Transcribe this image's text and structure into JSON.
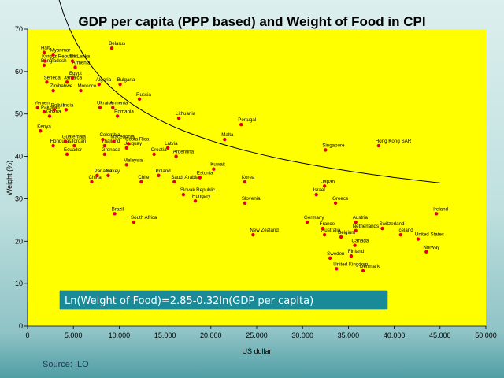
{
  "footer": {
    "source": "Source: ILO"
  },
  "chart_data": {
    "type": "scatter",
    "title": "GDP per capita (PPP based) and Weight of Food in CPI",
    "xlabel": "US dollar",
    "ylabel": "Weight (%)",
    "xlim": [
      0,
      50000
    ],
    "ylim": [
      0,
      70
    ],
    "x_ticks": [
      0,
      5000,
      10000,
      15000,
      20000,
      25000,
      30000,
      35000,
      40000,
      45000,
      50000
    ],
    "x_tick_labels": [
      "0",
      "5.000",
      "10.000",
      "15.000",
      "20.000",
      "25.000",
      "30.000",
      "35.000",
      "40.000",
      "45.000",
      "50.000"
    ],
    "y_ticks": [
      0,
      10,
      20,
      30,
      40,
      50,
      60,
      70
    ],
    "y_tick_labels": [
      "0",
      "10",
      "20",
      "30",
      "40",
      "50",
      "60",
      "70"
    ],
    "grid": false,
    "colors": {
      "plot_background": "#ffff00",
      "points": "#e0001b",
      "trendline": "#000000",
      "equation_box": "#1a8a99"
    },
    "trendline": {
      "label": "Ln(Weight of Food)=2.85-0.32ln(GDP per capita)",
      "x_from": 1000,
      "x_to": 45000,
      "intercept": 2.85,
      "slope": -0.32,
      "scale_factor": 60.16
    },
    "points": [
      {
        "name": "Belarus",
        "x": 9200,
        "y": 65.5
      },
      {
        "name": "Haiti",
        "x": 1800,
        "y": 64.5
      },
      {
        "name": "Myanmar",
        "x": 2800,
        "y": 64
      },
      {
        "name": "Kyrgyz Republic",
        "x": 1900,
        "y": 62.5
      },
      {
        "name": "Sri Lanka",
        "x": 4900,
        "y": 62.5
      },
      {
        "name": "Bangladesh",
        "x": 1800,
        "y": 61.5
      },
      {
        "name": "Armenia",
        "x": 5200,
        "y": 61
      },
      {
        "name": "Egypt",
        "x": 4900,
        "y": 58.5
      },
      {
        "name": "Senegal",
        "x": 2100,
        "y": 57.5
      },
      {
        "name": "Jamaica",
        "x": 4300,
        "y": 57.5
      },
      {
        "name": "Algeria",
        "x": 7800,
        "y": 57
      },
      {
        "name": "Bulgaria",
        "x": 10100,
        "y": 57
      },
      {
        "name": "Zimbabwe",
        "x": 2800,
        "y": 55.5
      },
      {
        "name": "Morocco",
        "x": 5800,
        "y": 55.5
      },
      {
        "name": "Russia",
        "x": 12200,
        "y": 53.5
      },
      {
        "name": "Yemen",
        "x": 1100,
        "y": 51.5
      },
      {
        "name": "Ukraine",
        "x": 7900,
        "y": 51.5
      },
      {
        "name": "Armenia",
        "x": 9300,
        "y": 51.5
      },
      {
        "name": "Bolivia",
        "x": 2900,
        "y": 51
      },
      {
        "name": "India",
        "x": 4200,
        "y": 51
      },
      {
        "name": "Pakistan",
        "x": 1800,
        "y": 50.5
      },
      {
        "name": "Ghana",
        "x": 2400,
        "y": 49.5
      },
      {
        "name": "Romania",
        "x": 9800,
        "y": 49.5
      },
      {
        "name": "Lithuania",
        "x": 16500,
        "y": 49
      },
      {
        "name": "Portugal",
        "x": 23300,
        "y": 47.5
      },
      {
        "name": "Kenya",
        "x": 1400,
        "y": 46
      },
      {
        "name": "Colombia",
        "x": 8200,
        "y": 44
      },
      {
        "name": "Malta",
        "x": 21500,
        "y": 44
      },
      {
        "name": "Guatemala",
        "x": 4100,
        "y": 43.5
      },
      {
        "name": "Macedonia",
        "x": 9400,
        "y": 43.5
      },
      {
        "name": "Honduras",
        "x": 2800,
        "y": 42.5
      },
      {
        "name": "Jordan",
        "x": 5100,
        "y": 42.5
      },
      {
        "name": "Costa Rica",
        "x": 11000,
        "y": 43
      },
      {
        "name": "Thailand",
        "x": 8400,
        "y": 42.5
      },
      {
        "name": "Uruguay",
        "x": 10800,
        "y": 42
      },
      {
        "name": "Latvia",
        "x": 15300,
        "y": 42
      },
      {
        "name": "Hong Kong SAR",
        "x": 38300,
        "y": 42.5
      },
      {
        "name": "Singapore",
        "x": 32500,
        "y": 41.5
      },
      {
        "name": "Ecuador",
        "x": 4300,
        "y": 40.5
      },
      {
        "name": "Grenada",
        "x": 8400,
        "y": 40.5
      },
      {
        "name": "Croatia",
        "x": 13800,
        "y": 40.5
      },
      {
        "name": "Argentina",
        "x": 16200,
        "y": 40
      },
      {
        "name": "Malaysia",
        "x": 10800,
        "y": 38
      },
      {
        "name": "Kuwait",
        "x": 20300,
        "y": 37
      },
      {
        "name": "Panama",
        "x": 7600,
        "y": 35.5
      },
      {
        "name": "Turkey",
        "x": 8800,
        "y": 35.5
      },
      {
        "name": "Poland",
        "x": 14300,
        "y": 35.5
      },
      {
        "name": "Estonia",
        "x": 18800,
        "y": 35
      },
      {
        "name": "China",
        "x": 7000,
        "y": 34
      },
      {
        "name": "Chile",
        "x": 12400,
        "y": 34
      },
      {
        "name": "Saudi Arabia",
        "x": 16000,
        "y": 34
      },
      {
        "name": "Korea",
        "x": 23700,
        "y": 34
      },
      {
        "name": "Japan",
        "x": 32400,
        "y": 33
      },
      {
        "name": "Slovak Republic",
        "x": 17000,
        "y": 31
      },
      {
        "name": "Israel",
        "x": 31500,
        "y": 31
      },
      {
        "name": "Hungary",
        "x": 18300,
        "y": 29.5
      },
      {
        "name": "Slovenia",
        "x": 23700,
        "y": 29
      },
      {
        "name": "Greece",
        "x": 33600,
        "y": 29
      },
      {
        "name": "Brazil",
        "x": 9500,
        "y": 26.5
      },
      {
        "name": "Ireland",
        "x": 44600,
        "y": 26.5
      },
      {
        "name": "South Africa",
        "x": 11600,
        "y": 24.5
      },
      {
        "name": "Germany",
        "x": 30500,
        "y": 24.5
      },
      {
        "name": "Austria",
        "x": 35800,
        "y": 24.5
      },
      {
        "name": "France",
        "x": 32200,
        "y": 23
      },
      {
        "name": "Switzerland",
        "x": 38700,
        "y": 23
      },
      {
        "name": "Netherlands",
        "x": 35800,
        "y": 22.5
      },
      {
        "name": "Iceland",
        "x": 40700,
        "y": 21.5
      },
      {
        "name": "New Zealand",
        "x": 24600,
        "y": 21.5
      },
      {
        "name": "Australia",
        "x": 32400,
        "y": 21.5
      },
      {
        "name": "Belgium",
        "x": 34200,
        "y": 21
      },
      {
        "name": "United States",
        "x": 42600,
        "y": 20.5
      },
      {
        "name": "Canada",
        "x": 35700,
        "y": 19
      },
      {
        "name": "Norway",
        "x": 43500,
        "y": 17.5
      },
      {
        "name": "Finland",
        "x": 35300,
        "y": 16.5
      },
      {
        "name": "Sweden",
        "x": 33000,
        "y": 16
      },
      {
        "name": "United Kingdom",
        "x": 33700,
        "y": 13.5
      },
      {
        "name": "Denmark",
        "x": 36600,
        "y": 13
      }
    ]
  }
}
